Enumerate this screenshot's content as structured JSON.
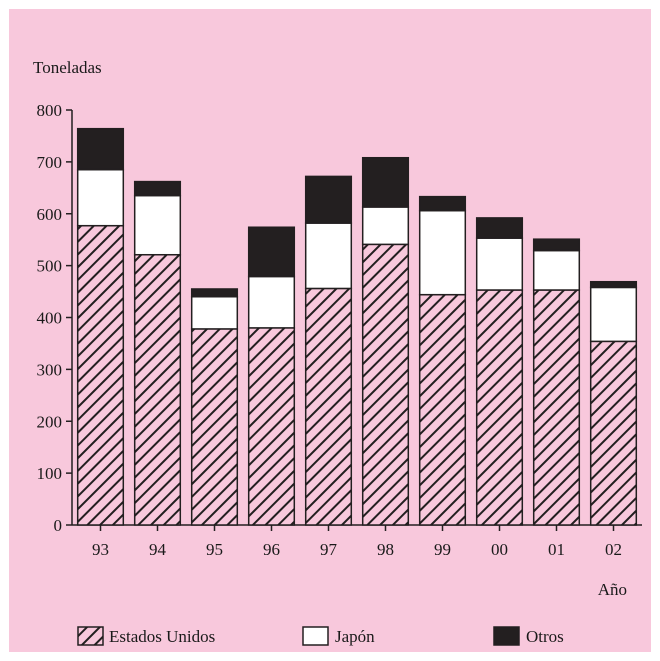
{
  "chart_data": {
    "type": "bar",
    "stacked": true,
    "ylabel": "Toneladas",
    "xlabel": "Año",
    "ylim": [
      0,
      800
    ],
    "yticks": [
      "0",
      "100",
      "200",
      "300",
      "400",
      "500",
      "600",
      "700",
      "800"
    ],
    "categories": [
      "93",
      "94",
      "95",
      "96",
      "97",
      "98",
      "99",
      "00",
      "01",
      "02"
    ],
    "series": [
      {
        "name": "Estados Unidos",
        "values": [
          577,
          521,
          378,
          380,
          456,
          541,
          444,
          453,
          453,
          354
        ],
        "fill": "hatch"
      },
      {
        "name": "Japón",
        "values": [
          108,
          114,
          62,
          99,
          126,
          72,
          162,
          100,
          76,
          104
        ],
        "fill": "#ffffff"
      },
      {
        "name": "Otros",
        "values": [
          79,
          27,
          15,
          95,
          90,
          95,
          27,
          39,
          22,
          11
        ],
        "fill": "#231f20"
      }
    ],
    "legend": "bottom",
    "background": "#f8c8dc"
  }
}
